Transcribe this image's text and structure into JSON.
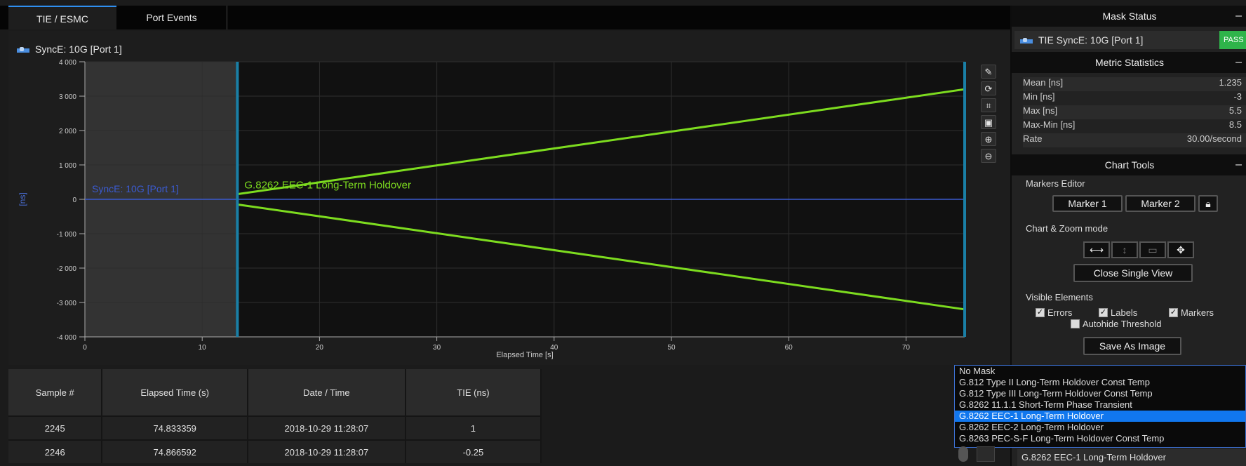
{
  "tabs": [
    {
      "label": "TIE / ESMC",
      "active": true
    },
    {
      "label": "Port Events",
      "active": false
    }
  ],
  "chart": {
    "series_legend": "SyncE: 10G [Port 1]"
  },
  "chart_data": {
    "type": "line",
    "xlabel": "Elapsed Time [s]",
    "ylabel": "[ns]",
    "xlim": [
      0,
      75
    ],
    "ylim": [
      -4000,
      4000
    ],
    "x_ticks": [
      0,
      10,
      20,
      30,
      40,
      50,
      60,
      70
    ],
    "x_tick_labels": [
      "0",
      "10",
      "20",
      "30",
      "40",
      "50",
      "60",
      "70"
    ],
    "y_ticks": [
      4000,
      3000,
      2000,
      1000,
      0,
      -1000,
      -2000,
      -3000,
      -4000
    ],
    "y_tick_labels": [
      "4 000",
      "3 000",
      "2 000",
      "1 000",
      "0",
      "-1 000",
      "-2 000",
      "-3 000",
      "-4 000"
    ],
    "grid": true,
    "series": [
      {
        "name": "SyncE: 10G [Port 1]",
        "color": "#3b5bd0",
        "x": [
          0,
          75
        ],
        "y": [
          0,
          0
        ]
      },
      {
        "name": "G.8262 EEC-1 Long-Term Holdover",
        "color": "#7ddc1f",
        "x": [
          13,
          75
        ],
        "y": [
          150,
          3200
        ]
      },
      {
        "name": "G.8262 EEC-1 Long-Term Holdover",
        "color": "#7ddc1f",
        "x": [
          13,
          75
        ],
        "y": [
          -150,
          -3200
        ]
      }
    ],
    "annotations": [
      {
        "text": "SyncE: 10G [Port 1]",
        "x": 0.6,
        "y": 200,
        "color": "#3b5bd0"
      },
      {
        "text": "G.8262 EEC-1 Long-Term Holdover",
        "x": 13.6,
        "y": 320,
        "color": "#7ddc1f"
      }
    ],
    "shaded_region": {
      "x": [
        0,
        13
      ]
    },
    "markers": [
      13,
      75
    ]
  },
  "chart_tools_icons": [
    "pencil-icon",
    "refresh-icon",
    "crop-icon",
    "image-icon",
    "zoom-in-icon",
    "zoom-out-icon"
  ],
  "table": {
    "headers": [
      "Sample #",
      "Elapsed Time (s)",
      "Date / Time",
      "TIE (ns)"
    ],
    "rows": [
      [
        "2245",
        "74.833359",
        "2018-10-29 11:28:07",
        "1"
      ],
      [
        "2246",
        "74.866592",
        "2018-10-29 11:28:07",
        "-0.25"
      ]
    ]
  },
  "sidebar": {
    "mask_status": {
      "title": "Mask Status",
      "item": "TIE SyncE: 10G [Port 1]",
      "status": "PASS"
    },
    "metric_statistics": {
      "title": "Metric Statistics",
      "rows": [
        {
          "label": "Mean [ns]",
          "value": "1.235"
        },
        {
          "label": "Min [ns]",
          "value": "-3"
        },
        {
          "label": "Max [ns]",
          "value": "5.5"
        },
        {
          "label": "Max-Min [ns]",
          "value": "8.5"
        },
        {
          "label": "Rate",
          "value": "30.00/second"
        }
      ]
    },
    "chart_tools": {
      "title": "Chart Tools",
      "markers_editor_label": "Markers Editor",
      "marker1": "Marker 1",
      "marker2": "Marker 2",
      "chart_zoom_label": "Chart & Zoom mode",
      "close_single_view": "Close Single View",
      "visible_elements_label": "Visible Elements",
      "errors": "Errors",
      "labels": "Labels",
      "markers": "Markers",
      "autohide": "Autohide Threshold",
      "save_image": "Save As Image"
    }
  },
  "mask_dropdown": {
    "options": [
      "No Mask",
      "G.812 Type II Long-Term Holdover Const Temp",
      "G.812 Type III Long-Term Holdover Const Temp",
      "G.8262 11.1.1 Short-Term Phase Transient",
      "G.8262 EEC-1 Long-Term Holdover",
      "G.8262 EEC-2 Long-Term Holdover",
      "G.8263 PEC-S-F Long-Term Holdover Const Temp"
    ],
    "selected": "G.8262 EEC-1 Long-Term Holdover"
  }
}
